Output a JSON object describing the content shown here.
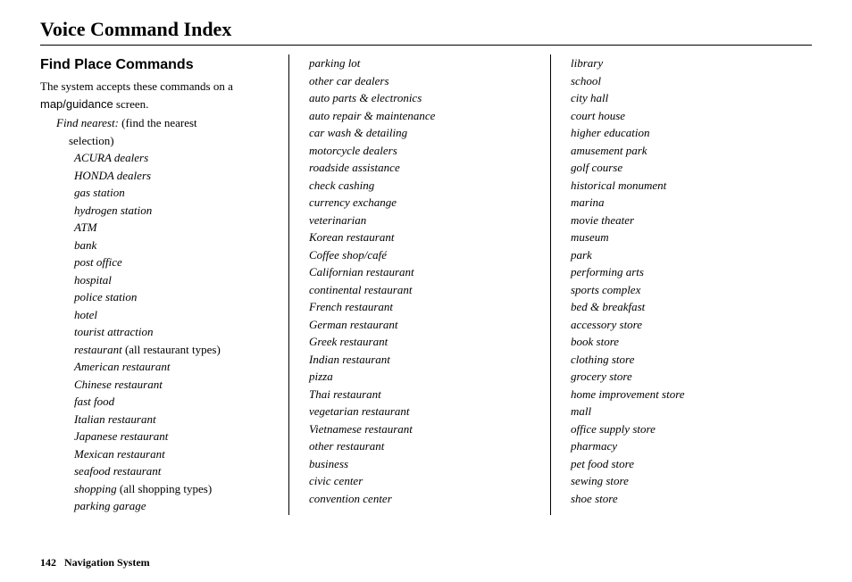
{
  "title": "Voice Command Index",
  "section_title": "Find Place Commands",
  "intro_part1": "The system accepts these commands on a ",
  "intro_screen": "map/guidance",
  "intro_part2": " screen.",
  "find_nearest_label": "Find nearest:",
  "find_nearest_note": " (find the nearest",
  "selection_text": "selection)",
  "col1_items": [
    {
      "text": "ACURA dealers"
    },
    {
      "text": "HONDA dealers"
    },
    {
      "text": "gas station"
    },
    {
      "text": "hydrogen station"
    },
    {
      "text": "ATM"
    },
    {
      "text": "bank"
    },
    {
      "text": "post office"
    },
    {
      "text": "hospital"
    },
    {
      "text": "police station"
    },
    {
      "text": "hotel"
    },
    {
      "text": "tourist attraction"
    },
    {
      "text": "restaurant",
      "note": " (all restaurant types)"
    },
    {
      "text": "American restaurant"
    },
    {
      "text": "Chinese restaurant"
    },
    {
      "text": "fast food"
    },
    {
      "text": "Italian restaurant"
    },
    {
      "text": "Japanese restaurant"
    },
    {
      "text": "Mexican restaurant"
    },
    {
      "text": "seafood restaurant"
    },
    {
      "text": "shopping",
      "note": " (all shopping types)"
    },
    {
      "text": "parking garage"
    }
  ],
  "col2_items": [
    {
      "text": "parking lot"
    },
    {
      "text": "other car dealers"
    },
    {
      "text": "auto parts & electronics"
    },
    {
      "text": "auto repair & maintenance"
    },
    {
      "text": "car wash & detailing"
    },
    {
      "text": "motorcycle dealers"
    },
    {
      "text": "roadside assistance"
    },
    {
      "text": "check cashing"
    },
    {
      "text": "currency exchange"
    },
    {
      "text": "veterinarian"
    },
    {
      "text": "Korean restaurant"
    },
    {
      "text": "Coffee shop/café"
    },
    {
      "text": "Californian restaurant"
    },
    {
      "text": "continental restaurant"
    },
    {
      "text": "French restaurant"
    },
    {
      "text": "German restaurant"
    },
    {
      "text": "Greek restaurant"
    },
    {
      "text": "Indian restaurant"
    },
    {
      "text": "pizza"
    },
    {
      "text": "Thai restaurant"
    },
    {
      "text": "vegetarian restaurant"
    },
    {
      "text": "Vietnamese restaurant"
    },
    {
      "text": "other restaurant"
    },
    {
      "text": "business"
    },
    {
      "text": "civic center"
    },
    {
      "text": "convention center"
    }
  ],
  "col3_items": [
    {
      "text": "library"
    },
    {
      "text": "school"
    },
    {
      "text": "city hall"
    },
    {
      "text": "court house"
    },
    {
      "text": "higher education"
    },
    {
      "text": "amusement park"
    },
    {
      "text": "golf course"
    },
    {
      "text": "historical monument"
    },
    {
      "text": "marina"
    },
    {
      "text": "movie theater"
    },
    {
      "text": "museum"
    },
    {
      "text": "park"
    },
    {
      "text": "performing arts"
    },
    {
      "text": "sports complex"
    },
    {
      "text": "bed & breakfast"
    },
    {
      "text": "accessory store"
    },
    {
      "text": "book store"
    },
    {
      "text": "clothing store"
    },
    {
      "text": "grocery store"
    },
    {
      "text": "home improvement store"
    },
    {
      "text": "mall"
    },
    {
      "text": "office supply store"
    },
    {
      "text": "pharmacy"
    },
    {
      "text": "pet food store"
    },
    {
      "text": "sewing store"
    },
    {
      "text": "shoe store"
    }
  ],
  "footer": {
    "page_number": "142",
    "section_name": "Navigation System"
  }
}
